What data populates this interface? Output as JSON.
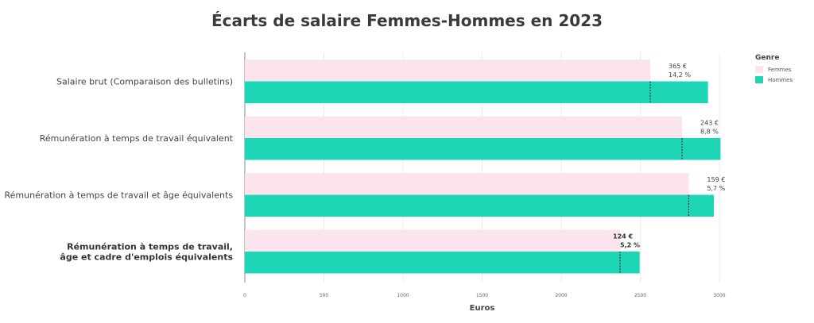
{
  "chart_data": {
    "type": "bar",
    "orientation": "horizontal",
    "title": "Écarts de salaire Femmes-Hommes en 2023",
    "xlabel": "Euros",
    "ylabel": "",
    "xlim": [
      0,
      3000
    ],
    "xticks": [
      "0",
      "500",
      "1000",
      "1500",
      "2000",
      "2500",
      "3000"
    ],
    "categories": [
      "Salaire brut (Comparaison des bulletins)",
      "Rémunération à temps de travail équivalent",
      "Rémunération à temps de travail et âge équivalents",
      "Rémunération à temps de travail, âge et cadre d'emplois équivalents"
    ],
    "category_lines": [
      [
        "Salaire brut (Comparaison des bulletins)"
      ],
      [
        "Rémunération à temps de travail équivalent"
      ],
      [
        "Rémunération à temps de travail et âge équivalents"
      ],
      [
        "Rémunération à temps de travail,",
        "âge et cadre d'emplois équivalents"
      ]
    ],
    "highlighted_category": 3,
    "series": [
      {
        "name": "Femmes",
        "values": [
          2563,
          2764,
          2806,
          2372
        ]
      },
      {
        "name": "Hommes",
        "values": [
          2928,
          3007,
          2965,
          2496
        ]
      }
    ],
    "gap_labels": [
      {
        "amount": "365 €",
        "percent": "14,2 %"
      },
      {
        "amount": "243 €",
        "percent": "8,8 %"
      },
      {
        "amount": "159 €",
        "percent": "5,7 %"
      },
      {
        "amount": "124 €",
        "percent": "5,2 %"
      }
    ],
    "legend": {
      "title": "Genre",
      "position": "top-right"
    },
    "colors": {
      "Femmes": "#fce4ee",
      "Hommes": "#1dd6b6"
    },
    "grid": true
  }
}
